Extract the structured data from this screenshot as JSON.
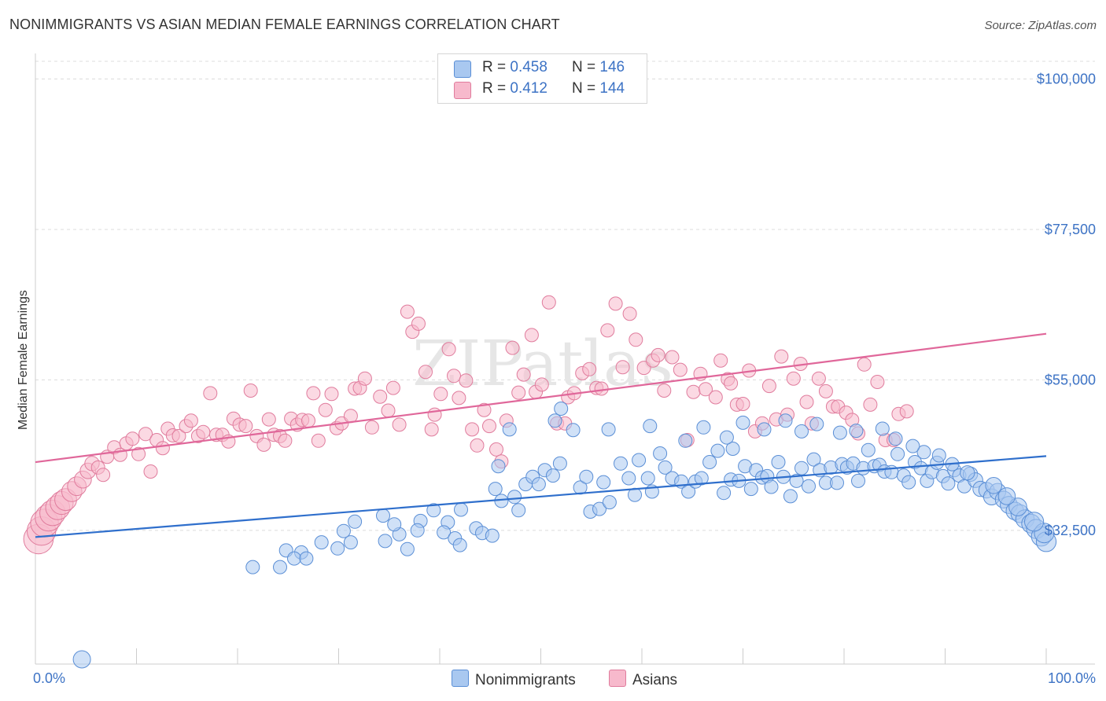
{
  "title": "NONIMMIGRANTS VS ASIAN MEDIAN FEMALE EARNINGS CORRELATION CHART",
  "source": "Source: ZipAtlas.com",
  "watermark": "ZIPatlas",
  "legend": {
    "items": [
      {
        "r_label": "R =",
        "r_value": "0.458",
        "n_label": "N =",
        "n_value": "146"
      },
      {
        "r_label": "R =",
        "r_value": "0.412",
        "n_label": "N =",
        "n_value": "144"
      }
    ]
  },
  "bottom_legend": [
    "Nonimmigrants",
    "Asians"
  ],
  "colors": {
    "blue_fill": "#a9c8f0",
    "blue_stroke": "#5b8fd6",
    "blue_line": "#2f6fcc",
    "pink_fill": "#f7b9cc",
    "pink_stroke": "#e07c9d",
    "pink_line": "#e0679a",
    "grid": "#dcdcdc",
    "tick_label": "#3d73c5"
  },
  "chart_data": {
    "type": "scatter",
    "title": "NONIMMIGRANTS VS ASIAN MEDIAN FEMALE EARNINGS CORRELATION CHART",
    "xlabel": "",
    "ylabel": "Median Female Earnings",
    "xlim": [
      0,
      100
    ],
    "ylim": [
      12500,
      103000
    ],
    "x_tick_labels": [
      "0.0%",
      "100.0%"
    ],
    "y_ticks": [
      {
        "value": 32500,
        "label": "$32,500"
      },
      {
        "value": 55000,
        "label": "$55,000"
      },
      {
        "value": 77500,
        "label": "$77,500"
      },
      {
        "value": 100000,
        "label": "$100,000"
      }
    ],
    "grid": "horizontal dashed",
    "legend_position": "top-center",
    "series": [
      {
        "name": "Nonimmigrants",
        "color": "#a9c8f0",
        "trend": {
          "x": [
            0,
            100
          ],
          "y": [
            31500,
            43600
          ]
        },
        "points": [
          [
            4.6,
            13200
          ],
          [
            21.5,
            27000
          ],
          [
            24.2,
            27000
          ],
          [
            24.8,
            29500
          ],
          [
            26.3,
            29200
          ],
          [
            25.6,
            28300
          ],
          [
            26.8,
            28300
          ],
          [
            28.3,
            30700
          ],
          [
            29.9,
            29800
          ],
          [
            30.5,
            32400
          ],
          [
            31.2,
            30700
          ],
          [
            31.6,
            33800
          ],
          [
            34.6,
            30900
          ],
          [
            34.4,
            34700
          ],
          [
            36.0,
            31900
          ],
          [
            35.5,
            33400
          ],
          [
            36.8,
            29700
          ],
          [
            39.4,
            35500
          ],
          [
            38.1,
            33900
          ],
          [
            37.8,
            32500
          ],
          [
            40.8,
            33700
          ],
          [
            40.4,
            32200
          ],
          [
            41.5,
            31300
          ],
          [
            42.0,
            30300
          ],
          [
            42.1,
            35600
          ],
          [
            43.6,
            32800
          ],
          [
            44.2,
            32100
          ],
          [
            45.2,
            31700
          ],
          [
            45.5,
            38700
          ],
          [
            46.1,
            36900
          ],
          [
            47.8,
            35500
          ],
          [
            45.8,
            42100
          ],
          [
            47.4,
            37500
          ],
          [
            46.9,
            47600
          ],
          [
            48.5,
            39400
          ],
          [
            49.2,
            40500
          ],
          [
            49.8,
            39400
          ],
          [
            50.4,
            41500
          ],
          [
            51.2,
            40700
          ],
          [
            51.9,
            42500
          ],
          [
            51.4,
            48900
          ],
          [
            52.0,
            50700
          ],
          [
            53.2,
            47500
          ],
          [
            53.9,
            38900
          ],
          [
            54.5,
            40500
          ],
          [
            54.9,
            35300
          ],
          [
            55.8,
            35700
          ],
          [
            56.2,
            39700
          ],
          [
            56.8,
            36700
          ],
          [
            56.7,
            47600
          ],
          [
            57.9,
            42500
          ],
          [
            58.7,
            40300
          ],
          [
            59.3,
            37800
          ],
          [
            59.7,
            43000
          ],
          [
            60.6,
            40300
          ],
          [
            61.0,
            38300
          ],
          [
            60.8,
            48100
          ],
          [
            61.8,
            44000
          ],
          [
            62.3,
            41900
          ],
          [
            63.0,
            40300
          ],
          [
            63.9,
            39800
          ],
          [
            64.3,
            45900
          ],
          [
            64.6,
            38300
          ],
          [
            65.3,
            39800
          ],
          [
            65.9,
            40300
          ],
          [
            66.7,
            42700
          ],
          [
            66.1,
            47900
          ],
          [
            67.5,
            44400
          ],
          [
            68.1,
            38100
          ],
          [
            68.8,
            40100
          ],
          [
            69.0,
            44700
          ],
          [
            69.6,
            39900
          ],
          [
            70.2,
            42100
          ],
          [
            70.8,
            38700
          ],
          [
            71.3,
            41500
          ],
          [
            71.9,
            40400
          ],
          [
            72.4,
            40600
          ],
          [
            72.8,
            39000
          ],
          [
            73.5,
            42700
          ],
          [
            74.0,
            40500
          ],
          [
            74.7,
            37600
          ],
          [
            75.3,
            39900
          ],
          [
            75.8,
            41800
          ],
          [
            76.5,
            39100
          ],
          [
            77.0,
            43100
          ],
          [
            77.6,
            41500
          ],
          [
            78.2,
            39600
          ],
          [
            78.7,
            41900
          ],
          [
            79.3,
            39600
          ],
          [
            79.8,
            42400
          ],
          [
            80.3,
            41900
          ],
          [
            80.9,
            42500
          ],
          [
            81.4,
            39900
          ],
          [
            81.9,
            41800
          ],
          [
            82.4,
            44500
          ],
          [
            83.0,
            42100
          ],
          [
            83.5,
            42300
          ],
          [
            84.0,
            41300
          ],
          [
            84.7,
            41200
          ],
          [
            85.3,
            43900
          ],
          [
            85.9,
            40700
          ],
          [
            86.4,
            39700
          ],
          [
            87.0,
            42700
          ],
          [
            87.6,
            41800
          ],
          [
            88.2,
            39900
          ],
          [
            88.7,
            41200
          ],
          [
            89.2,
            42600
          ],
          [
            89.8,
            40600
          ],
          [
            90.3,
            39500
          ],
          [
            90.9,
            41500
          ],
          [
            91.4,
            40700
          ],
          [
            91.9,
            39100
          ],
          [
            92.5,
            40900
          ],
          [
            93.0,
            40000
          ],
          [
            93.5,
            38700
          ],
          [
            94.1,
            38500
          ],
          [
            94.6,
            37500
          ],
          [
            95.2,
            38300
          ],
          [
            95.8,
            37100
          ],
          [
            96.3,
            36300
          ],
          [
            96.9,
            35400
          ],
          [
            97.4,
            35000
          ],
          [
            97.9,
            34200
          ],
          [
            98.5,
            33500
          ],
          [
            99.0,
            32700
          ],
          [
            99.5,
            31600
          ],
          [
            100.0,
            30800
          ],
          [
            99.8,
            32100
          ],
          [
            98.8,
            33800
          ],
          [
            97.2,
            36000
          ],
          [
            96.1,
            37600
          ],
          [
            94.8,
            39200
          ],
          [
            92.2,
            41100
          ],
          [
            90.7,
            42400
          ],
          [
            89.4,
            43700
          ],
          [
            87.9,
            44200
          ],
          [
            86.8,
            45100
          ],
          [
            85.1,
            46200
          ],
          [
            83.8,
            47700
          ],
          [
            81.2,
            47400
          ],
          [
            79.6,
            47100
          ],
          [
            77.3,
            48400
          ],
          [
            75.8,
            47300
          ],
          [
            74.2,
            48900
          ],
          [
            72.1,
            47600
          ],
          [
            70.0,
            48600
          ],
          [
            68.4,
            46400
          ]
        ]
      },
      {
        "name": "Asians",
        "color": "#f7b9cc",
        "trend": {
          "x": [
            0,
            100
          ],
          "y": [
            42700,
            61900
          ]
        },
        "points": [
          [
            0.3,
            31200
          ],
          [
            0.6,
            32400
          ],
          [
            0.9,
            33600
          ],
          [
            1.3,
            34400
          ],
          [
            1.7,
            35100
          ],
          [
            2.2,
            35900
          ],
          [
            2.6,
            36600
          ],
          [
            3.0,
            37100
          ],
          [
            3.6,
            38300
          ],
          [
            4.1,
            39100
          ],
          [
            4.7,
            40100
          ],
          [
            5.2,
            41400
          ],
          [
            5.6,
            42500
          ],
          [
            6.2,
            41900
          ],
          [
            6.7,
            40800
          ],
          [
            7.1,
            43500
          ],
          [
            7.8,
            44900
          ],
          [
            8.4,
            43800
          ],
          [
            9.0,
            45500
          ],
          [
            9.6,
            46200
          ],
          [
            10.2,
            43900
          ],
          [
            10.9,
            46900
          ],
          [
            11.4,
            41300
          ],
          [
            12.0,
            46000
          ],
          [
            12.6,
            44800
          ],
          [
            13.1,
            47700
          ],
          [
            13.6,
            46700
          ],
          [
            14.2,
            46600
          ],
          [
            14.9,
            48100
          ],
          [
            15.4,
            48900
          ],
          [
            16.1,
            46600
          ],
          [
            16.6,
            47200
          ],
          [
            17.3,
            53000
          ],
          [
            17.9,
            46800
          ],
          [
            18.5,
            46800
          ],
          [
            19.1,
            45800
          ],
          [
            19.6,
            49200
          ],
          [
            20.2,
            48300
          ],
          [
            20.8,
            48100
          ],
          [
            21.3,
            53400
          ],
          [
            21.9,
            46600
          ],
          [
            22.6,
            45300
          ],
          [
            23.1,
            49100
          ],
          [
            23.6,
            46800
          ],
          [
            24.2,
            46600
          ],
          [
            24.7,
            45900
          ],
          [
            25.3,
            49200
          ],
          [
            25.9,
            48300
          ],
          [
            26.4,
            49000
          ],
          [
            27.0,
            48900
          ],
          [
            27.5,
            53000
          ],
          [
            28.0,
            45900
          ],
          [
            28.7,
            50500
          ],
          [
            29.3,
            52900
          ],
          [
            29.8,
            47800
          ],
          [
            30.3,
            48500
          ],
          [
            31.2,
            49600
          ],
          [
            31.6,
            53700
          ],
          [
            32.1,
            53800
          ],
          [
            32.6,
            55200
          ],
          [
            33.3,
            47900
          ],
          [
            34.1,
            52500
          ],
          [
            34.9,
            50400
          ],
          [
            35.4,
            53800
          ],
          [
            36.0,
            48300
          ],
          [
            36.8,
            65200
          ],
          [
            37.3,
            62200
          ],
          [
            37.9,
            63400
          ],
          [
            38.6,
            56200
          ],
          [
            39.2,
            47600
          ],
          [
            39.5,
            49800
          ],
          [
            40.1,
            52900
          ],
          [
            40.9,
            59600
          ],
          [
            41.4,
            55600
          ],
          [
            41.9,
            52300
          ],
          [
            42.6,
            54900
          ],
          [
            43.2,
            47600
          ],
          [
            43.7,
            45200
          ],
          [
            44.4,
            50500
          ],
          [
            44.9,
            48100
          ],
          [
            45.6,
            44600
          ],
          [
            46.1,
            42800
          ],
          [
            46.6,
            48900
          ],
          [
            47.2,
            59800
          ],
          [
            47.8,
            53100
          ],
          [
            48.3,
            55800
          ],
          [
            49.1,
            61700
          ],
          [
            49.5,
            53200
          ],
          [
            50.1,
            54300
          ],
          [
            50.8,
            66600
          ],
          [
            51.6,
            48500
          ],
          [
            52.4,
            48500
          ],
          [
            52.7,
            52400
          ],
          [
            53.3,
            53000
          ],
          [
            54.1,
            56000
          ],
          [
            54.8,
            56600
          ],
          [
            55.5,
            53800
          ],
          [
            56.0,
            53700
          ],
          [
            56.6,
            62400
          ],
          [
            57.4,
            66400
          ],
          [
            58.1,
            56900
          ],
          [
            58.8,
            64900
          ],
          [
            59.4,
            61000
          ],
          [
            60.2,
            56800
          ],
          [
            61.1,
            57900
          ],
          [
            61.6,
            58700
          ],
          [
            62.2,
            53400
          ],
          [
            63.0,
            58400
          ],
          [
            63.8,
            56500
          ],
          [
            64.5,
            46000
          ],
          [
            65.1,
            53200
          ],
          [
            65.8,
            55900
          ],
          [
            66.3,
            53600
          ],
          [
            67.3,
            52400
          ],
          [
            67.8,
            57900
          ],
          [
            68.5,
            55100
          ],
          [
            68.8,
            54500
          ],
          [
            69.4,
            51300
          ],
          [
            70.0,
            51400
          ],
          [
            70.6,
            56400
          ],
          [
            71.2,
            47300
          ],
          [
            71.9,
            48500
          ],
          [
            72.6,
            54100
          ],
          [
            73.3,
            49100
          ],
          [
            73.8,
            58500
          ],
          [
            74.4,
            49800
          ],
          [
            75.0,
            55200
          ],
          [
            75.7,
            57400
          ],
          [
            76.3,
            51700
          ],
          [
            76.8,
            48500
          ],
          [
            77.5,
            55200
          ],
          [
            78.2,
            53300
          ],
          [
            78.9,
            51000
          ],
          [
            79.4,
            51000
          ],
          [
            80.2,
            50100
          ],
          [
            80.8,
            49000
          ],
          [
            81.4,
            47000
          ],
          [
            82.0,
            57300
          ],
          [
            82.6,
            51300
          ],
          [
            83.3,
            54700
          ],
          [
            84.1,
            46000
          ],
          [
            84.9,
            46000
          ],
          [
            85.4,
            49900
          ],
          [
            86.2,
            50300
          ]
        ]
      }
    ]
  }
}
